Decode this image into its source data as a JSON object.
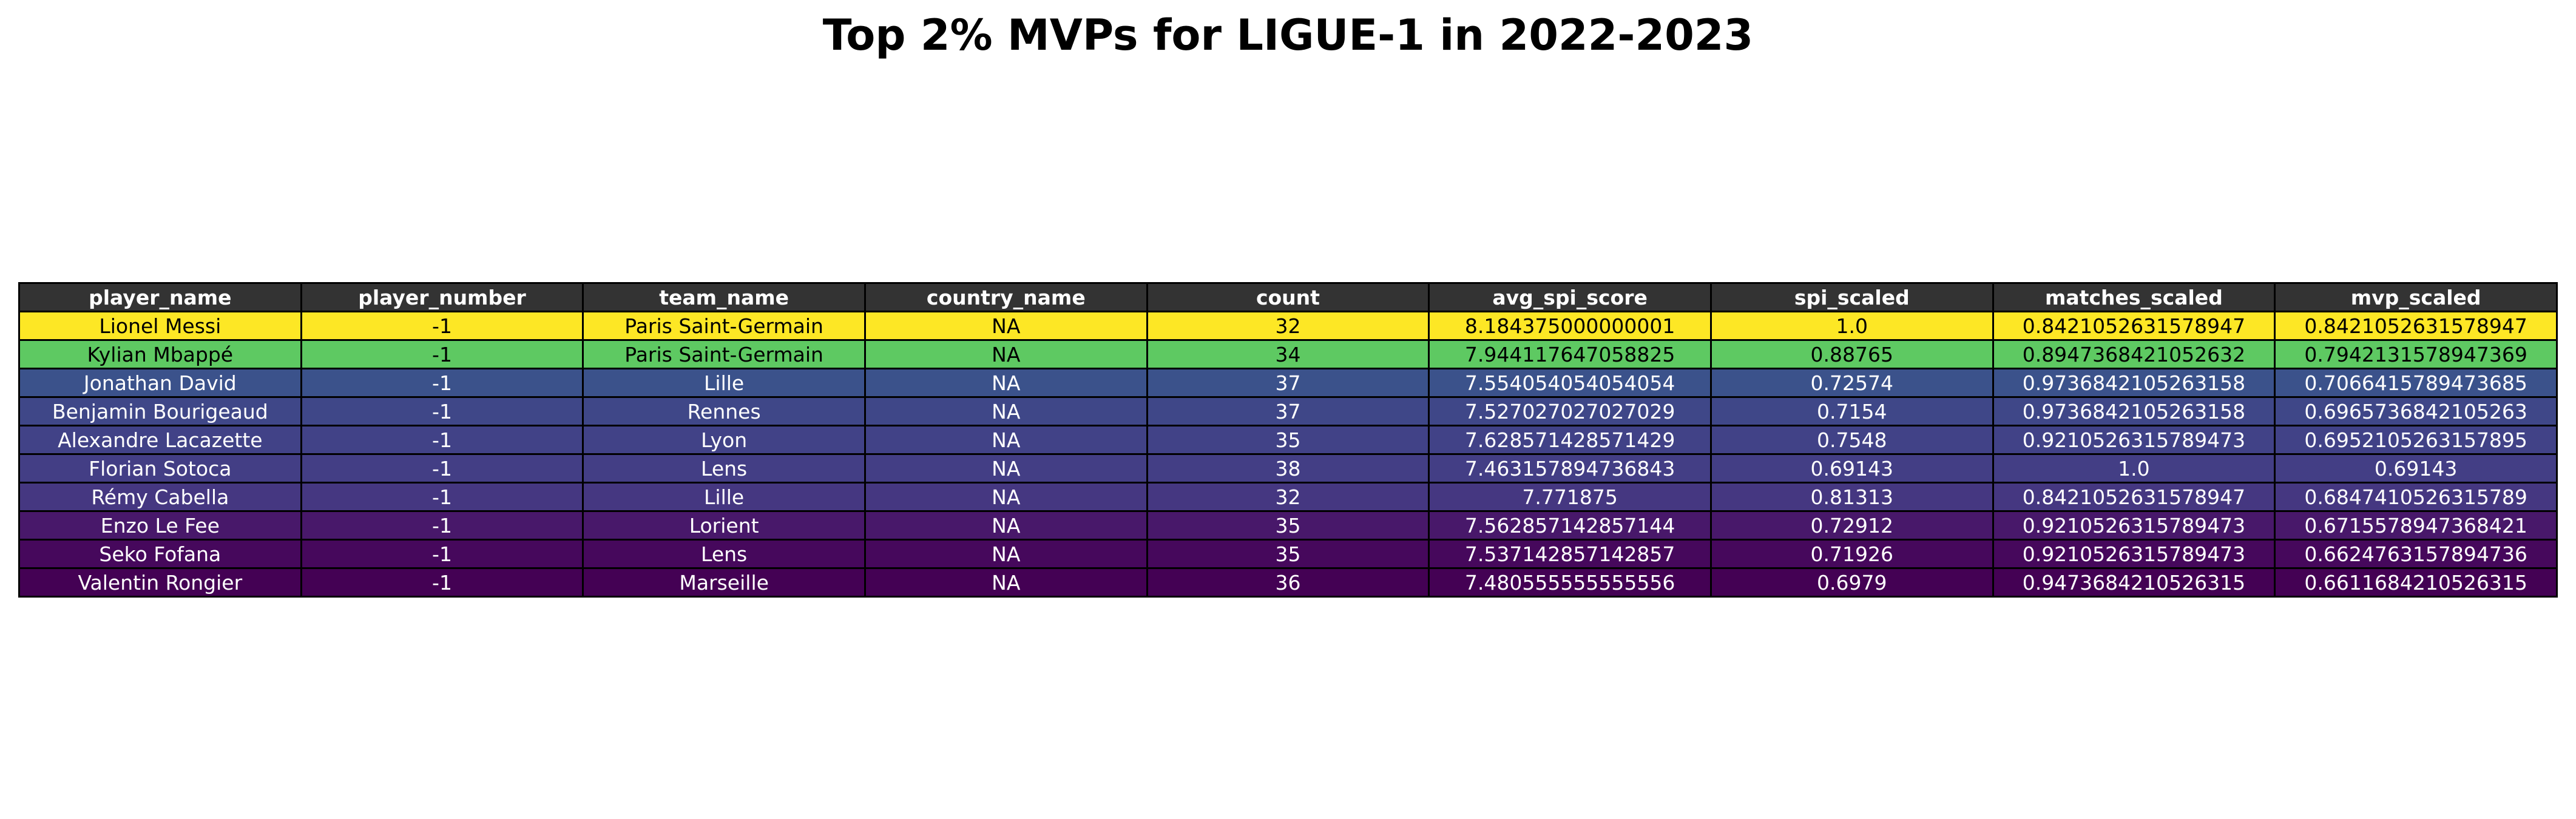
{
  "chart_data": {
    "type": "table",
    "title": "Top 2% MVPs for LIGUE-1 in 2022-2023",
    "header_bg": "#333333",
    "header_color": "#ffffff",
    "columns": [
      "player_name",
      "player_number",
      "team_name",
      "country_name",
      "count",
      "avg_spi_score",
      "spi_scaled",
      "matches_scaled",
      "mvp_scaled"
    ],
    "rows": [
      {
        "bg": "#fde725",
        "text": "#000000",
        "cells": [
          "Lionel Messi",
          "-1",
          "Paris Saint-Germain",
          "NA",
          "32",
          "8.184375000000001",
          "1.0",
          "0.8421052631578947",
          "0.8421052631578947"
        ]
      },
      {
        "bg": "#5ec962",
        "text": "#000000",
        "cells": [
          "Kylian Mbappé",
          "-1",
          "Paris Saint-Germain",
          "NA",
          "34",
          "7.944117647058825",
          "0.88765",
          "0.8947368421052632",
          "0.7942131578947369"
        ]
      },
      {
        "bg": "#3b528b",
        "text": "#ffffff",
        "cells": [
          "Jonathan David",
          "-1",
          "Lille",
          "NA",
          "37",
          "7.554054054054054",
          "0.72574",
          "0.9736842105263158",
          "0.7066415789473685"
        ]
      },
      {
        "bg": "#3f4788",
        "text": "#ffffff",
        "cells": [
          "Benjamin Bourigeaud",
          "-1",
          "Rennes",
          "NA",
          "37",
          "7.527027027027029",
          "0.7154",
          "0.9736842105263158",
          "0.6965736842105263"
        ]
      },
      {
        "bg": "#414287",
        "text": "#ffffff",
        "cells": [
          "Alexandre Lacazette",
          "-1",
          "Lyon",
          "NA",
          "35",
          "7.628571428571429",
          "0.7548",
          "0.9210526315789473",
          "0.6952105263157895"
        ]
      },
      {
        "bg": "#433e85",
        "text": "#ffffff",
        "cells": [
          "Florian Sotoca",
          "-1",
          "Lens",
          "NA",
          "38",
          "7.463157894736843",
          "0.69143",
          "1.0",
          "0.69143"
        ]
      },
      {
        "bg": "#453781",
        "text": "#ffffff",
        "cells": [
          "Rémy Cabella",
          "-1",
          "Lille",
          "NA",
          "32",
          "7.771875",
          "0.81313",
          "0.8421052631578947",
          "0.6847410526315789"
        ]
      },
      {
        "bg": "#48186a",
        "text": "#ffffff",
        "cells": [
          "Enzo Le Fee",
          "-1",
          "Lorient",
          "NA",
          "35",
          "7.562857142857144",
          "0.72912",
          "0.9210526315789473",
          "0.6715578947368421"
        ]
      },
      {
        "bg": "#46085c",
        "text": "#ffffff",
        "cells": [
          "Seko Fofana",
          "-1",
          "Lens",
          "NA",
          "35",
          "7.537142857142857",
          "0.71926",
          "0.9210526315789473",
          "0.6624763157894736"
        ]
      },
      {
        "bg": "#440154",
        "text": "#ffffff",
        "cells": [
          "Valentin Rongier",
          "-1",
          "Marseille",
          "NA",
          "36",
          "7.480555555555556",
          "0.6979",
          "0.9473684210526315",
          "0.6611684210526315"
        ]
      }
    ]
  }
}
